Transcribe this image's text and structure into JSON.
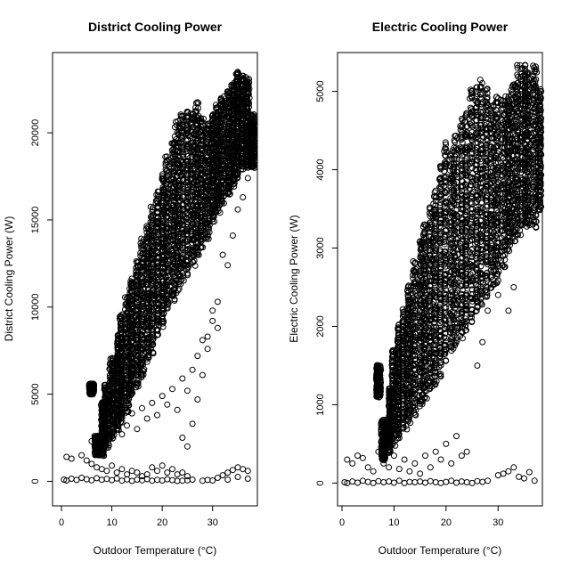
{
  "chart_data": [
    {
      "type": "scatter",
      "title": "District Cooling Power",
      "xlabel": "Outdoor Temperature (°C)",
      "ylabel": "District Cooling Power (W)",
      "xlim": [
        0,
        38
      ],
      "ylim": [
        -1000,
        24400
      ],
      "xticks": [
        0,
        10,
        20,
        30
      ],
      "yticks": [
        0,
        5000,
        10000,
        15000,
        20000
      ],
      "marker": "open-circle",
      "grid": false,
      "bands": [
        [
          6,
          5000,
          5600
        ],
        [
          7,
          1500,
          2600
        ],
        [
          8,
          1500,
          4500
        ],
        [
          9,
          2000,
          5500
        ],
        [
          10,
          2500,
          7000
        ],
        [
          11,
          3000,
          8300
        ],
        [
          12,
          3500,
          9500
        ],
        [
          13,
          4000,
          10500
        ],
        [
          14,
          5000,
          11500
        ],
        [
          15,
          5500,
          12500
        ],
        [
          16,
          6000,
          13800
        ],
        [
          17,
          7000,
          14500
        ],
        [
          18,
          7500,
          15600
        ],
        [
          19,
          8500,
          16500
        ],
        [
          20,
          9000,
          17500
        ],
        [
          21,
          10000,
          18500
        ],
        [
          22,
          10500,
          19500
        ],
        [
          23,
          11000,
          20500
        ],
        [
          24,
          11500,
          21000
        ],
        [
          25,
          12000,
          21200
        ],
        [
          26,
          12500,
          21000
        ],
        [
          27,
          13000,
          21600
        ],
        [
          28,
          13500,
          20800
        ],
        [
          29,
          14000,
          20500
        ],
        [
          30,
          15000,
          21000
        ],
        [
          31,
          15500,
          21500
        ],
        [
          32,
          16000,
          22000
        ],
        [
          33,
          16500,
          22300
        ],
        [
          34,
          17000,
          22800
        ],
        [
          35,
          17500,
          23500
        ],
        [
          36,
          18000,
          23200
        ],
        [
          37,
          18000,
          23100
        ],
        [
          38,
          18000,
          21000
        ]
      ],
      "scatter": [
        [
          1,
          1400
        ],
        [
          2,
          1300
        ],
        [
          4,
          1500
        ],
        [
          5,
          1200
        ],
        [
          6,
          1000
        ],
        [
          7,
          800
        ],
        [
          8,
          700
        ],
        [
          9,
          600
        ],
        [
          10,
          900
        ],
        [
          11,
          500
        ],
        [
          12,
          700
        ],
        [
          13,
          400
        ],
        [
          14,
          600
        ],
        [
          15,
          500
        ],
        [
          16,
          300
        ],
        [
          17,
          400
        ],
        [
          18,
          800
        ],
        [
          19,
          600
        ],
        [
          20,
          900
        ],
        [
          21,
          500
        ],
        [
          22,
          700
        ],
        [
          23,
          400
        ],
        [
          24,
          500
        ],
        [
          25,
          300
        ],
        [
          6,
          2300
        ],
        [
          8,
          3100
        ],
        [
          9,
          2800
        ],
        [
          11,
          3500
        ],
        [
          12,
          2700
        ],
        [
          13,
          3200
        ],
        [
          14,
          3900
        ],
        [
          15,
          3000
        ],
        [
          16,
          4200
        ],
        [
          17,
          3600
        ],
        [
          18,
          4500
        ],
        [
          19,
          3800
        ],
        [
          20,
          4900
        ],
        [
          21,
          4400
        ],
        [
          22,
          5300
        ],
        [
          23,
          4100
        ],
        [
          24,
          5900
        ],
        [
          25,
          5200
        ],
        [
          26,
          6400
        ],
        [
          27,
          7200
        ],
        [
          28,
          8100
        ],
        [
          29,
          7600
        ],
        [
          30,
          9200
        ],
        [
          31,
          8800
        ],
        [
          24,
          2500
        ],
        [
          25,
          2000
        ],
        [
          26,
          3300
        ],
        [
          27,
          4700
        ],
        [
          28,
          6100
        ],
        [
          29,
          8300
        ],
        [
          30,
          9800
        ],
        [
          31,
          10300
        ],
        [
          32,
          13000
        ],
        [
          33,
          12400
        ],
        [
          34,
          14100
        ],
        [
          35,
          15600
        ],
        [
          36,
          16300
        ],
        [
          37,
          17400
        ],
        [
          38,
          18200
        ]
      ],
      "low_cluster": [
        [
          0.5,
          100
        ],
        [
          1,
          50
        ],
        [
          2,
          150
        ],
        [
          3,
          80
        ],
        [
          4,
          200
        ],
        [
          5,
          120
        ],
        [
          6,
          60
        ],
        [
          7,
          180
        ],
        [
          8,
          90
        ],
        [
          9,
          140
        ],
        [
          10,
          70
        ],
        [
          11,
          160
        ],
        [
          12,
          40
        ],
        [
          13,
          110
        ],
        [
          14,
          20
        ],
        [
          15,
          100
        ],
        [
          16,
          60
        ],
        [
          17,
          130
        ],
        [
          18,
          30
        ],
        [
          19,
          90
        ],
        [
          20,
          50
        ],
        [
          21,
          120
        ],
        [
          22,
          70
        ],
        [
          23,
          20
        ],
        [
          24,
          40
        ],
        [
          25,
          60
        ],
        [
          26,
          100
        ],
        [
          28,
          30
        ],
        [
          29,
          80
        ],
        [
          30,
          50
        ],
        [
          31,
          200
        ],
        [
          32,
          350
        ],
        [
          33,
          500
        ],
        [
          34,
          650
        ],
        [
          35,
          800
        ],
        [
          36,
          700
        ],
        [
          37,
          600
        ],
        [
          33,
          100
        ],
        [
          35,
          250
        ],
        [
          37,
          150
        ]
      ]
    },
    {
      "type": "scatter",
      "title": "Electric Cooling Power",
      "xlabel": "Outdoor Temperature (°C)",
      "ylabel": "Electric Cooling Power (W)",
      "xlim": [
        0,
        38
      ],
      "ylim": [
        -200,
        5450
      ],
      "xticks": [
        0,
        10,
        20,
        30
      ],
      "yticks": [
        0,
        1000,
        2000,
        3000,
        4000,
        5000
      ],
      "marker": "open-circle",
      "grid": false,
      "bands": [
        [
          7,
          1100,
          1500
        ],
        [
          8,
          300,
          800
        ],
        [
          9,
          400,
          1200
        ],
        [
          10,
          500,
          1700
        ],
        [
          11,
          600,
          2000
        ],
        [
          12,
          700,
          2200
        ],
        [
          13,
          800,
          2500
        ],
        [
          14,
          900,
          2800
        ],
        [
          15,
          1000,
          3100
        ],
        [
          16,
          1100,
          3300
        ],
        [
          17,
          1200,
          3500
        ],
        [
          18,
          1300,
          3700
        ],
        [
          19,
          1400,
          4000
        ],
        [
          20,
          1600,
          4300
        ],
        [
          21,
          1700,
          4200
        ],
        [
          22,
          1800,
          4400
        ],
        [
          23,
          1900,
          4600
        ],
        [
          24,
          2000,
          4700
        ],
        [
          25,
          2100,
          5000
        ],
        [
          26,
          2200,
          5000
        ],
        [
          27,
          2300,
          5100
        ],
        [
          28,
          2400,
          5000
        ],
        [
          29,
          2500,
          4800
        ],
        [
          30,
          2600,
          4900
        ],
        [
          31,
          2800,
          4900
        ],
        [
          32,
          3000,
          4900
        ],
        [
          33,
          3100,
          5100
        ],
        [
          34,
          3200,
          5300
        ],
        [
          35,
          3300,
          5300
        ],
        [
          36,
          3300,
          5200
        ],
        [
          37,
          3300,
          5300
        ],
        [
          38,
          3500,
          5000
        ]
      ],
      "scatter": [
        [
          1,
          300
        ],
        [
          2,
          250
        ],
        [
          3,
          350
        ],
        [
          4,
          320
        ],
        [
          5,
          200
        ],
        [
          6,
          150
        ],
        [
          7,
          400
        ],
        [
          8,
          250
        ],
        [
          9,
          200
        ],
        [
          10,
          350
        ],
        [
          11,
          180
        ],
        [
          12,
          300
        ],
        [
          13,
          150
        ],
        [
          14,
          250
        ],
        [
          15,
          120
        ],
        [
          16,
          350
        ],
        [
          17,
          200
        ],
        [
          18,
          400
        ],
        [
          19,
          300
        ],
        [
          20,
          500
        ],
        [
          21,
          250
        ],
        [
          22,
          600
        ],
        [
          23,
          350
        ],
        [
          24,
          400
        ],
        [
          26,
          1500
        ],
        [
          27,
          1800
        ],
        [
          28,
          2200
        ],
        [
          29,
          2800
        ],
        [
          30,
          2400
        ],
        [
          31,
          2900
        ],
        [
          32,
          2200
        ],
        [
          33,
          2500
        ]
      ],
      "low_cluster": [
        [
          0.5,
          10
        ],
        [
          1,
          0
        ],
        [
          2,
          20
        ],
        [
          3,
          5
        ],
        [
          4,
          30
        ],
        [
          5,
          15
        ],
        [
          6,
          0
        ],
        [
          7,
          25
        ],
        [
          8,
          10
        ],
        [
          9,
          20
        ],
        [
          10,
          5
        ],
        [
          11,
          30
        ],
        [
          12,
          0
        ],
        [
          13,
          15
        ],
        [
          14,
          10
        ],
        [
          15,
          20
        ],
        [
          16,
          5
        ],
        [
          17,
          25
        ],
        [
          18,
          10
        ],
        [
          19,
          0
        ],
        [
          20,
          15
        ],
        [
          21,
          30
        ],
        [
          22,
          5
        ],
        [
          23,
          20
        ],
        [
          24,
          10
        ],
        [
          25,
          0
        ],
        [
          26,
          25
        ],
        [
          27,
          15
        ],
        [
          28,
          30
        ],
        [
          30,
          100
        ],
        [
          31,
          120
        ],
        [
          32,
          150
        ],
        [
          33,
          200
        ],
        [
          34,
          80
        ],
        [
          35,
          60
        ],
        [
          36,
          140
        ],
        [
          37,
          30
        ]
      ]
    }
  ]
}
